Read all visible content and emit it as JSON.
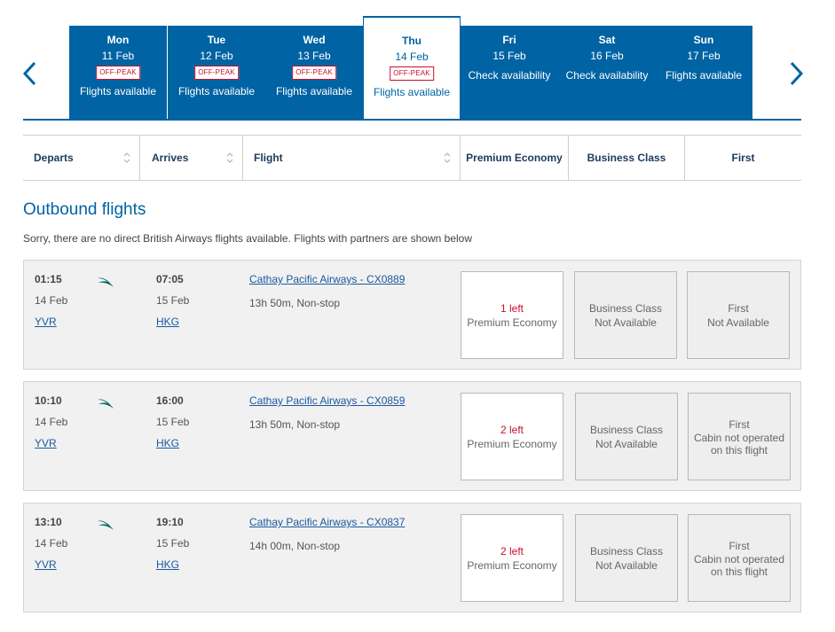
{
  "carousel": {
    "days": [
      {
        "day": "Mon",
        "date": "11 Feb",
        "badge": "OFF-PEAK",
        "status": "Flights available"
      },
      {
        "day": "Tue",
        "date": "12 Feb",
        "badge": "OFF-PEAK",
        "status": "Flights available"
      },
      {
        "day": "Wed",
        "date": "13 Feb",
        "badge": "OFF-PEAK",
        "status": "Flights available"
      },
      {
        "day": "Thu",
        "date": "14 Feb",
        "badge": "OFF-PEAK",
        "status": "Flights available"
      },
      {
        "day": "Fri",
        "date": "15 Feb",
        "status": "Check availability"
      },
      {
        "day": "Sat",
        "date": "16 Feb",
        "status": "Check availability"
      },
      {
        "day": "Sun",
        "date": "17 Feb",
        "status": "Flights available"
      }
    ],
    "selected_day": "Thu",
    "prev_icon": "chevron-left-icon",
    "next_icon": "chevron-right-icon"
  },
  "columns": {
    "departs": "Departs",
    "arrives": "Arrives",
    "flight": "Flight",
    "premium_economy": "Premium Economy",
    "business_class": "Business Class",
    "first": "First"
  },
  "outbound": {
    "title": "Outbound flights",
    "notice": "Sorry, there are no direct British Airways flights available. Flights with partners are shown below",
    "flights": [
      {
        "dep_time": "01:15",
        "dep_date": "14 Feb",
        "dep_code": "YVR",
        "arr_time": "07:05",
        "arr_date": "15 Feb",
        "arr_code": "HKG",
        "flight": "Cathay Pacific Airways - CX0889",
        "duration": "13h 50m, Non-stop",
        "pe": {
          "seats": "1 left",
          "label": "Premium Economy"
        },
        "business": {
          "line1": "Business Class",
          "line2": "Not Available"
        },
        "first": {
          "line1": "First",
          "line2": "Not Available"
        }
      },
      {
        "dep_time": "10:10",
        "dep_date": "14 Feb",
        "dep_code": "YVR",
        "arr_time": "16:00",
        "arr_date": "15 Feb",
        "arr_code": "HKG",
        "flight": "Cathay Pacific Airways - CX0859",
        "duration": "13h 50m, Non-stop",
        "pe": {
          "seats": "2 left",
          "label": "Premium Economy"
        },
        "business": {
          "line1": "Business Class",
          "line2": "Not Available"
        },
        "first": {
          "line1": "First",
          "line2": "Cabin not operated on this flight"
        }
      },
      {
        "dep_time": "13:10",
        "dep_date": "14 Feb",
        "dep_code": "YVR",
        "arr_time": "19:10",
        "arr_date": "15 Feb",
        "arr_code": "HKG",
        "flight": "Cathay Pacific Airways - CX0837",
        "duration": "14h 00m, Non-stop",
        "pe": {
          "seats": "2 left",
          "label": "Premium Economy"
        },
        "business": {
          "line1": "Business Class",
          "line2": "Not Available"
        },
        "first": {
          "line1": "First",
          "line2": "Cabin not operated on this flight"
        }
      }
    ]
  },
  "colors": {
    "brand_blue": "#0063a3",
    "alert_red": "#c8102e",
    "cathay_green": "#006564"
  }
}
